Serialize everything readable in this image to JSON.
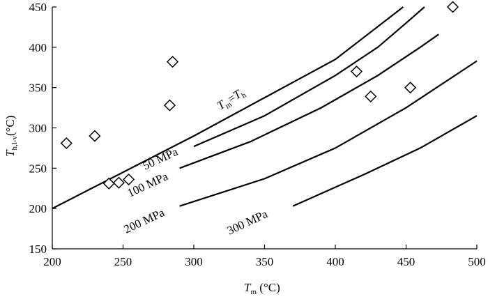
{
  "chart_data": {
    "type": "line",
    "xlabel": {
      "main": "T",
      "sub": "m",
      "unit": " (°C)"
    },
    "ylabel": {
      "main": "T",
      "sub": "h,l-v",
      "unit": "(°C)"
    },
    "xlim": [
      200,
      500
    ],
    "ylim": [
      150,
      450
    ],
    "xticks": [
      200,
      250,
      300,
      350,
      400,
      450,
      500
    ],
    "yticks": [
      150,
      200,
      250,
      300,
      350,
      400,
      450
    ],
    "series": [
      {
        "name": "Tm=Th",
        "x": [
          200,
          300,
          400,
          448
        ],
        "y": [
          200,
          290,
          385,
          450
        ]
      },
      {
        "name": "50 MPa",
        "x": [
          300,
          350,
          400,
          430,
          450,
          463
        ],
        "y": [
          277,
          315,
          365,
          400,
          430,
          450
        ]
      },
      {
        "name": "100 MPa",
        "x": [
          290,
          340,
          390,
          430,
          460,
          473
        ],
        "y": [
          250,
          283,
          325,
          365,
          400,
          416
        ]
      },
      {
        "name": "200 MPa",
        "x": [
          290,
          350,
          400,
          450,
          500
        ],
        "y": [
          203,
          237,
          275,
          325,
          383
        ]
      },
      {
        "name": "300 MPa",
        "x": [
          370,
          420,
          460,
          500
        ],
        "y": [
          203,
          242,
          275,
          315
        ]
      }
    ],
    "scatter": {
      "x": [
        210,
        230,
        240,
        247,
        254,
        283,
        285,
        415,
        425,
        453,
        483
      ],
      "y": [
        281,
        290,
        231,
        232,
        236,
        328,
        382,
        370,
        339,
        350,
        450
      ]
    },
    "annotations": {
      "diagonal": {
        "main1": "T",
        "sub1": "m",
        "eq": "=",
        "main2": "T",
        "sub2": "h"
      },
      "p50": "50 MPa",
      "p100": "100 MPa",
      "p200": "200 MPa",
      "p300": "300 MPa"
    }
  }
}
